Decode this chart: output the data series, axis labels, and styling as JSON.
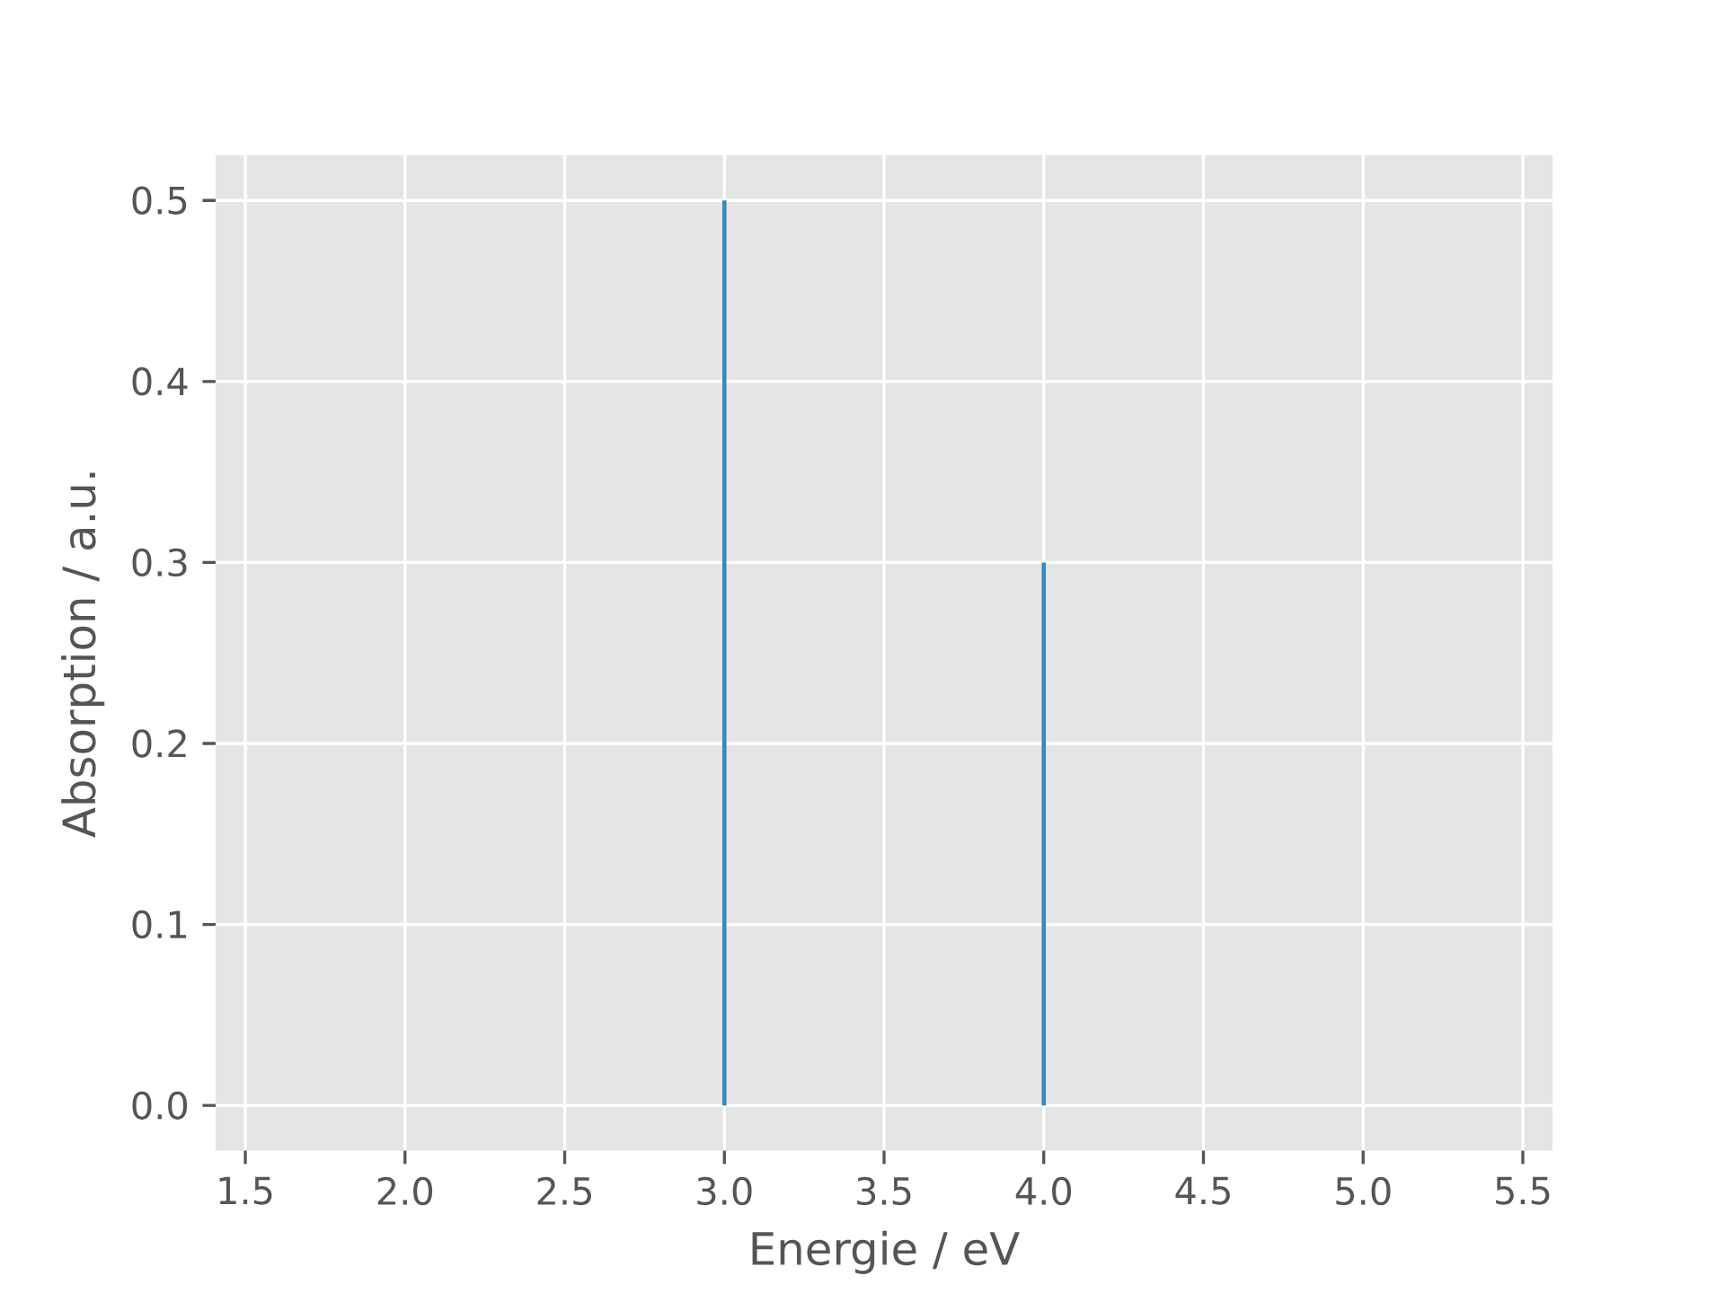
{
  "chart_data": {
    "type": "bar",
    "xlabel": "Energie / eV",
    "ylabel": "Absorption / a.u.",
    "x": [
      3.0,
      4.0
    ],
    "values": [
      0.5,
      0.3
    ],
    "color": "#348abd",
    "xlim": [
      1.407,
      5.593
    ],
    "ylim": [
      -0.025,
      0.525
    ],
    "xticks": [
      1.5,
      {
        "value": 2,
        "label": "2.0"
      },
      2.5,
      {
        "value": 3,
        "label": "3.0"
      },
      3.5,
      {
        "value": 4,
        "label": "4.0"
      },
      4.5,
      {
        "value": 5,
        "label": "5.0"
      },
      5.5
    ],
    "yticks": [
      {
        "value": 0,
        "label": "0.0"
      },
      0.1,
      0.2,
      0.3,
      0.4,
      0.5
    ],
    "grid": true
  }
}
